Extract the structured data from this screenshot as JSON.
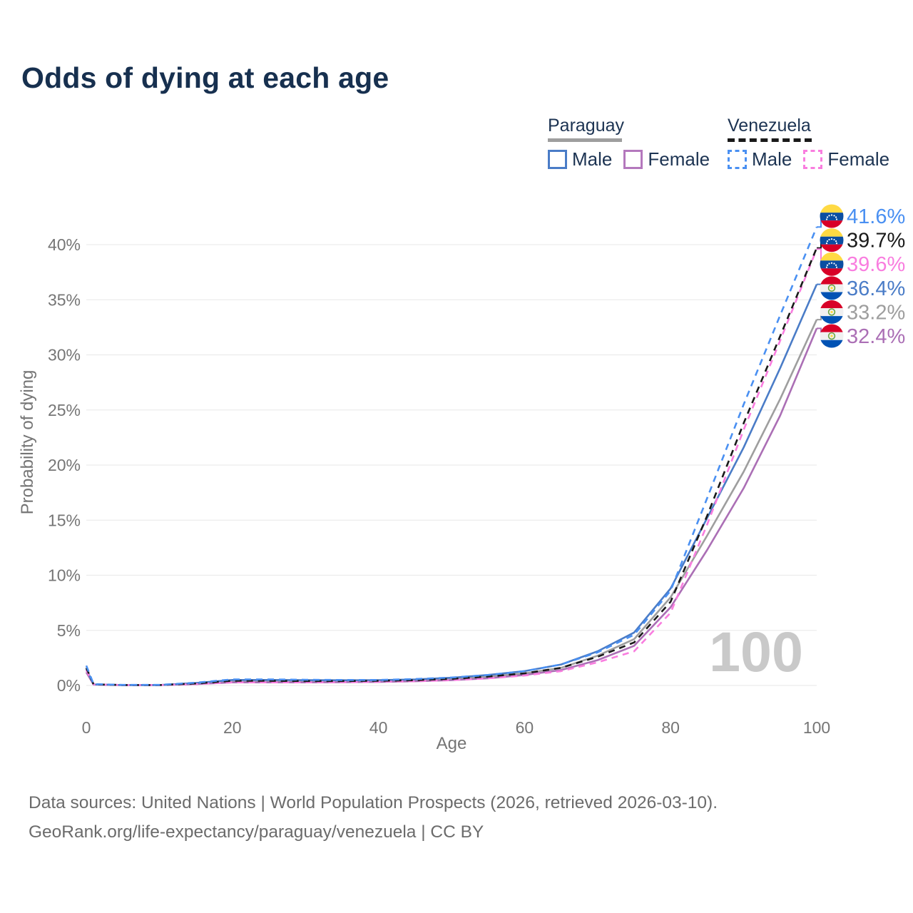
{
  "title": "Odds of dying at each age",
  "legend": {
    "groups": [
      {
        "country": "Paraguay",
        "line": {
          "color": "#9e9e9e",
          "dashed": false
        },
        "items": [
          {
            "label": "Male",
            "color": "#4a7cc7",
            "dashed": false
          },
          {
            "label": "Female",
            "color": "#b478bd",
            "dashed": false
          }
        ]
      },
      {
        "country": "Venezuela",
        "line": {
          "color": "#1a1a1a",
          "dashed": true
        },
        "items": [
          {
            "label": "Male",
            "color": "#4a90f2",
            "dashed": true
          },
          {
            "label": "Female",
            "color": "#f97ddf",
            "dashed": true
          }
        ]
      }
    ]
  },
  "chart_data": {
    "type": "line",
    "title": "Odds of dying at each age",
    "xlabel": "Age",
    "ylabel": "Probability of dying",
    "xlim": [
      0,
      100
    ],
    "ylim": [
      0,
      43
    ],
    "grid": true,
    "watermark": "100",
    "x_ticks": [
      {
        "v": 0,
        "label": "0"
      },
      {
        "v": 20,
        "label": "20"
      },
      {
        "v": 40,
        "label": "40"
      },
      {
        "v": 60,
        "label": "60"
      },
      {
        "v": 80,
        "label": "80"
      },
      {
        "v": 100,
        "label": "100"
      }
    ],
    "y_ticks": [
      {
        "v": 0,
        "label": "0%"
      },
      {
        "v": 5,
        "label": "5%"
      },
      {
        "v": 10,
        "label": "10%"
      },
      {
        "v": 15,
        "label": "15%"
      },
      {
        "v": 20,
        "label": "20%"
      },
      {
        "v": 25,
        "label": "25%"
      },
      {
        "v": 30,
        "label": "30%"
      },
      {
        "v": 35,
        "label": "35%"
      },
      {
        "v": 40,
        "label": "40%"
      }
    ],
    "ages": [
      0,
      1,
      5,
      10,
      15,
      20,
      25,
      30,
      35,
      40,
      45,
      50,
      55,
      60,
      65,
      70,
      75,
      80,
      85,
      90,
      95,
      100
    ],
    "series": [
      {
        "id": "paraguay-both",
        "name": "Paraguay (both sexes)",
        "country": "Paraguay",
        "sex": "both",
        "color": "#9e9e9e",
        "dashed": false,
        "flag": "paraguay",
        "end_label": "33.2%",
        "end_value": 33.2,
        "values": [
          1.4,
          0.09,
          0.04,
          0.04,
          0.17,
          0.4,
          0.4,
          0.38,
          0.38,
          0.4,
          0.46,
          0.58,
          0.8,
          1.1,
          1.6,
          2.7,
          4.2,
          8.0,
          13.6,
          19.4,
          26.0,
          33.2
        ]
      },
      {
        "id": "paraguay-female",
        "name": "Paraguay Female",
        "country": "Paraguay",
        "sex": "female",
        "color": "#ab6fb5",
        "dashed": false,
        "flag": "paraguay",
        "end_label": "32.4%",
        "end_value": 32.4,
        "values": [
          1.2,
          0.08,
          0.03,
          0.03,
          0.12,
          0.28,
          0.28,
          0.28,
          0.3,
          0.32,
          0.38,
          0.48,
          0.65,
          0.95,
          1.4,
          2.3,
          3.6,
          7.1,
          12.3,
          17.9,
          24.5,
          32.4
        ]
      },
      {
        "id": "paraguay-male",
        "name": "Paraguay Male",
        "country": "Paraguay",
        "sex": "male",
        "color": "#4a7cc7",
        "dashed": false,
        "flag": "paraguay",
        "end_label": "36.4%",
        "end_value": 36.4,
        "values": [
          1.5,
          0.1,
          0.04,
          0.04,
          0.22,
          0.5,
          0.5,
          0.48,
          0.47,
          0.48,
          0.55,
          0.7,
          0.95,
          1.3,
          1.9,
          3.1,
          4.8,
          8.8,
          15.2,
          21.6,
          28.8,
          36.4
        ]
      },
      {
        "id": "venezuela-female",
        "name": "Venezuela Female",
        "country": "Venezuela",
        "sex": "female",
        "color": "#f97ddf",
        "dashed": true,
        "flag": "venezuela",
        "end_label": "39.6%",
        "end_value": 39.6,
        "values": [
          1.4,
          0.09,
          0.04,
          0.04,
          0.12,
          0.28,
          0.28,
          0.28,
          0.3,
          0.33,
          0.38,
          0.48,
          0.65,
          0.9,
          1.3,
          2.1,
          3.1,
          6.6,
          14.6,
          23.2,
          31.3,
          39.6
        ]
      },
      {
        "id": "venezuela-both",
        "name": "Venezuela (both sexes)",
        "country": "Venezuela",
        "sex": "both",
        "color": "#1a1a1a",
        "dashed": true,
        "flag": "venezuela",
        "end_label": "39.7%",
        "end_value": 39.7,
        "values": [
          1.6,
          0.1,
          0.04,
          0.04,
          0.18,
          0.42,
          0.42,
          0.4,
          0.4,
          0.42,
          0.48,
          0.6,
          0.8,
          1.1,
          1.6,
          2.6,
          3.9,
          7.6,
          15.4,
          23.8,
          31.7,
          39.7
        ]
      },
      {
        "id": "venezuela-male",
        "name": "Venezuela Male",
        "country": "Venezuela",
        "sex": "male",
        "color": "#4a90f2",
        "dashed": true,
        "flag": "venezuela",
        "end_label": "41.6%",
        "end_value": 41.6,
        "values": [
          1.8,
          0.12,
          0.05,
          0.05,
          0.25,
          0.55,
          0.55,
          0.52,
          0.5,
          0.5,
          0.58,
          0.72,
          0.95,
          1.3,
          1.9,
          3.0,
          4.6,
          8.6,
          17.0,
          25.5,
          33.6,
          41.6
        ]
      }
    ],
    "label_order": [
      "venezuela-male",
      "venezuela-both",
      "venezuela-female",
      "paraguay-male",
      "paraguay-both",
      "paraguay-female"
    ]
  },
  "colors": {
    "title_text": "#17304f",
    "legend_text": "#1c3352",
    "axis_text": "#757575",
    "gridline": "#ececec",
    "watermark": "#c9c9c9",
    "footer_text": "#6b6b6b"
  },
  "flags": {
    "venezuela": {
      "yellow": "#ffda44",
      "blue": "#0b4ea2",
      "red": "#d80027",
      "star": "#ffffff"
    },
    "paraguay": {
      "red": "#d80027",
      "white": "#f0f0f0",
      "blue": "#0052b4",
      "wreath": "#6da544",
      "star": "#ffda44"
    }
  },
  "footer": {
    "line1": "Data sources: United Nations | World Population Prospects (2026, retrieved 2026-03-10).",
    "line2": "GeoRank.org/life-expectancy/paraguay/venezuela | CC BY"
  }
}
